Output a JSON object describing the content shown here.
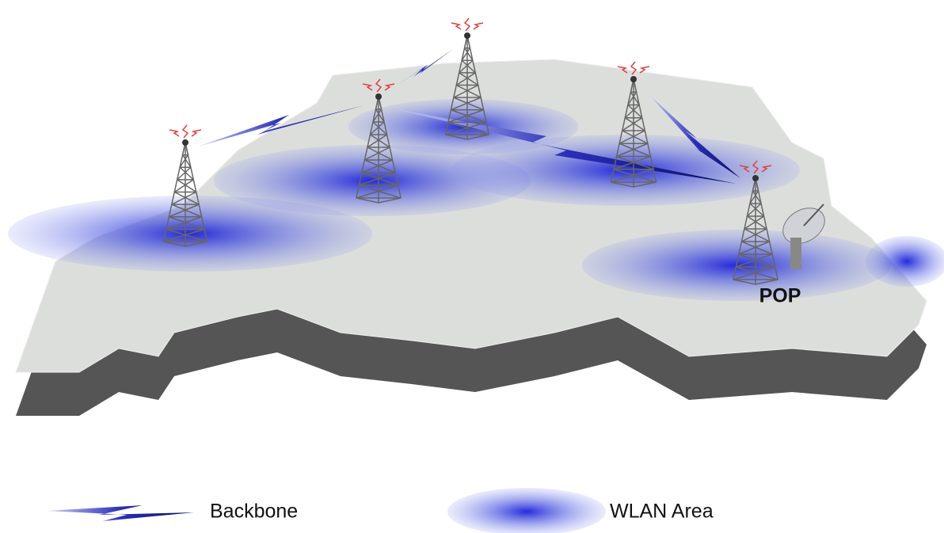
{
  "labels": {
    "pop": "POP"
  },
  "legend": [
    {
      "label": "Backbone"
    },
    {
      "label": "WLAN Area"
    }
  ]
}
